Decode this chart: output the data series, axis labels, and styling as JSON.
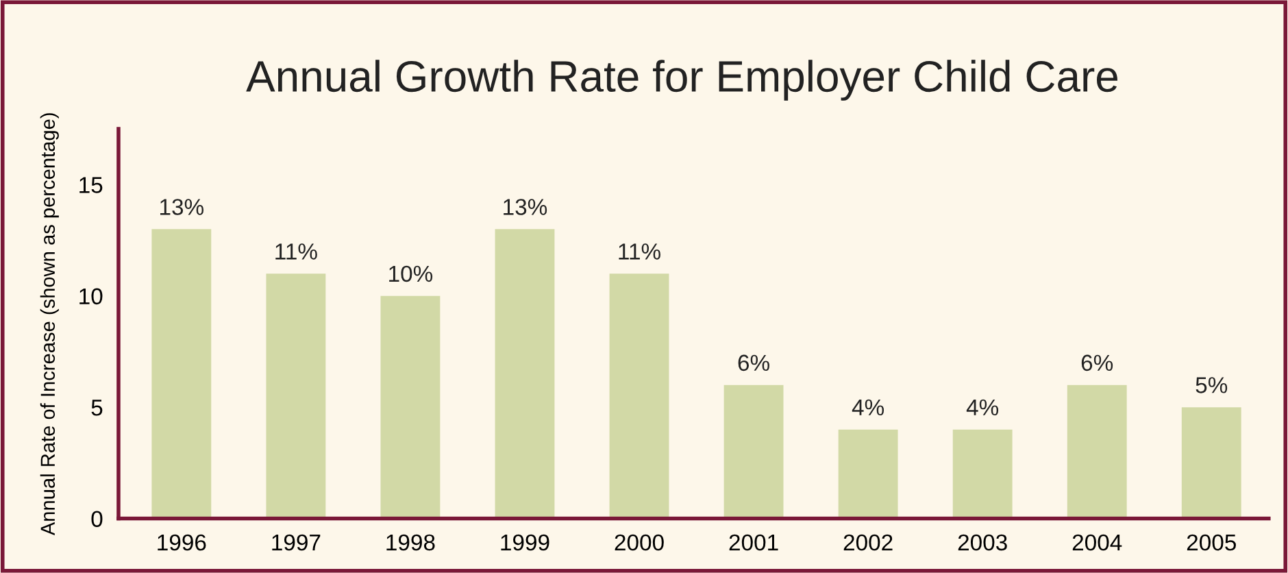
{
  "chart_data": {
    "type": "bar",
    "title": "Annual Growth Rate for Employer Child Care",
    "ylabel": "Annual Rate of Increase (shown as percentage)",
    "categories": [
      "1996",
      "1997",
      "1998",
      "1999",
      "2000",
      "2001",
      "2002",
      "2003",
      "2004",
      "2005"
    ],
    "values": [
      13,
      11,
      10,
      13,
      11,
      6,
      4,
      4,
      6,
      5
    ],
    "value_labels": [
      "13%",
      "11%",
      "10%",
      "13%",
      "11%",
      "6%",
      "4%",
      "4%",
      "6%",
      "5%"
    ],
    "color": "#d2d9a6",
    "ylim": [
      0,
      17.5
    ],
    "yticks": [
      0,
      5,
      10,
      15
    ],
    "grid": false,
    "legend": false
  }
}
